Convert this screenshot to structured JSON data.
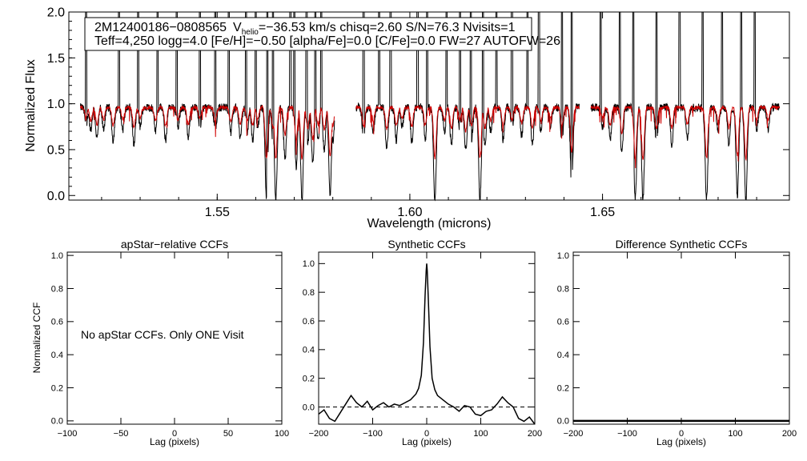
{
  "colors": {
    "observed": "#000000",
    "model": "#d00000",
    "frame": "#000000",
    "background": "#ffffff"
  },
  "spectrum_panel": {
    "info_line1": {
      "star_id": "2M12400186−0808565",
      "v_prefix": "V",
      "v_sub": "helio",
      "v_value": "=−36.53 km/s  chisq=2.60  S/N=76.3  Nvisits=1"
    },
    "info_line2": "Teff=4,250 logg=4.0 [Fe/H]=−0.50 [alpha/Fe]=0.0 [C/Fe]=0.0 FW=27 AUTOFW=26",
    "xlabel": "Wavelength (microns)",
    "ylabel": "Normalized Flux"
  },
  "ccf_panel1": {
    "title": "apStar−relative CCFs",
    "xlabel": "Lag (pixels)",
    "ylabel": "Normalized CCF",
    "message": "No apStar CCFs.  Only ONE Visit"
  },
  "ccf_panel2": {
    "title": "Synthetic CCFs",
    "xlabel": "Lag (pixels)"
  },
  "ccf_panel3": {
    "title": "Difference Synthetic CCFs",
    "xlabel": "Lag (pixels)"
  },
  "chart_data": [
    {
      "type": "line",
      "name": "spectrum",
      "xlabel": "Wavelength (microns)",
      "ylabel": "Normalized Flux",
      "xlim": [
        1.5115,
        1.6985
      ],
      "ylim": [
        -0.05,
        2.0
      ],
      "xticks": [
        1.55,
        1.6,
        1.65
      ],
      "xtick_labels": [
        "1.55",
        "1.60",
        "1.65"
      ],
      "yticks": [
        0.0,
        0.5,
        1.0,
        1.5,
        2.0
      ],
      "ytick_labels": [
        "0.0",
        "0.5",
        "1.0",
        "1.5",
        "2.0"
      ],
      "segments": [
        [
          1.5145,
          1.5805
        ],
        [
          1.586,
          1.644
        ],
        [
          1.647,
          1.696
        ]
      ],
      "series": [
        {
          "name": "observed spectrum",
          "color": "#000000",
          "continuum": 0.96,
          "absorption_lines": [
            [
              1.516,
              0.78
            ],
            [
              1.5172,
              0.7
            ],
            [
              1.5188,
              0.62
            ],
            [
              1.5205,
              0.72
            ],
            [
              1.523,
              0.6
            ],
            [
              1.5255,
              0.72
            ],
            [
              1.5284,
              0.55
            ],
            [
              1.53,
              0.75
            ],
            [
              1.534,
              0.7
            ],
            [
              1.5366,
              0.6
            ],
            [
              1.5398,
              0.72
            ],
            [
              1.5425,
              0.62
            ],
            [
              1.5455,
              0.74
            ],
            [
              1.5495,
              0.7
            ],
            [
              1.5535,
              0.68
            ],
            [
              1.556,
              0.62
            ],
            [
              1.5578,
              0.7
            ],
            [
              1.5592,
              0.6
            ],
            [
              1.5605,
              0.75
            ],
            [
              1.5628,
              -0.05
            ],
            [
              1.5645,
              0.55
            ],
            [
              1.5652,
              -0.05
            ],
            [
              1.5676,
              0.4
            ],
            [
              1.5705,
              0.3
            ],
            [
              1.572,
              -0.05
            ],
            [
              1.5735,
              0.55
            ],
            [
              1.5748,
              0.35
            ],
            [
              1.5762,
              0.62
            ],
            [
              1.5778,
              0.5
            ],
            [
              1.5793,
              0.0
            ],
            [
              1.58,
              0.6
            ],
            [
              1.588,
              0.6
            ],
            [
              1.5905,
              0.7
            ],
            [
              1.594,
              0.52
            ],
            [
              1.5965,
              0.6
            ],
            [
              1.598,
              0.75
            ],
            [
              1.6005,
              0.58
            ],
            [
              1.604,
              0.62
            ],
            [
              1.6065,
              -0.05
            ],
            [
              1.609,
              0.7
            ],
            [
              1.6108,
              0.55
            ],
            [
              1.613,
              0.72
            ],
            [
              1.6145,
              0.5
            ],
            [
              1.616,
              0.6
            ],
            [
              1.6182,
              -0.05
            ],
            [
              1.6195,
              0.55
            ],
            [
              1.621,
              0.7
            ],
            [
              1.6242,
              0.6
            ],
            [
              1.6265,
              0.72
            ],
            [
              1.629,
              0.65
            ],
            [
              1.6318,
              0.55
            ],
            [
              1.634,
              0.7
            ],
            [
              1.6365,
              0.75
            ],
            [
              1.6395,
              0.6
            ],
            [
              1.642,
              0.1
            ],
            [
              1.65,
              0.75
            ],
            [
              1.652,
              0.6
            ],
            [
              1.655,
              0.45
            ],
            [
              1.6585,
              -0.05
            ],
            [
              1.6605,
              -0.05
            ],
            [
              1.664,
              0.55
            ],
            [
              1.668,
              0.55
            ],
            [
              1.672,
              0.62
            ],
            [
              1.677,
              -0.05
            ],
            [
              1.68,
              0.7
            ],
            [
              1.6828,
              0.55
            ],
            [
              1.685,
              0.0
            ],
            [
              1.6872,
              -0.05
            ],
            [
              1.69,
              0.7
            ],
            [
              1.693,
              0.72
            ]
          ],
          "spikes": [
            1.516,
            1.5245,
            1.5295,
            1.5345,
            1.5395,
            1.5455,
            1.5495,
            1.553,
            1.5575,
            1.56,
            1.563,
            1.5645,
            1.569,
            1.57,
            1.5732,
            1.5755,
            1.577,
            1.588,
            1.592,
            1.595,
            1.602,
            1.6045,
            1.6095,
            1.613,
            1.6158,
            1.619,
            1.6225,
            1.6265,
            1.6305,
            1.6335,
            1.6395,
            1.642,
            1.6495,
            1.6545,
            1.658,
            1.664,
            1.67,
            1.676,
            1.681,
            1.686,
            1.6895
          ]
        },
        {
          "name": "model spectrum",
          "color": "#d00000",
          "continuum": 0.96,
          "absorption_scale": 0.55
        }
      ]
    },
    {
      "type": "line",
      "name": "apStar-relative CCFs",
      "title": "apStar−relative CCFs",
      "xlabel": "Lag (pixels)",
      "ylabel": "Normalized CCF",
      "xlim": [
        -100,
        100
      ],
      "ylim": [
        -0.02,
        1.02
      ],
      "xticks": [
        -100,
        -50,
        0,
        50,
        100
      ],
      "xtick_labels": [
        "−100",
        "−50",
        "0",
        "50",
        "100"
      ],
      "yticks": [
        0.0,
        0.2,
        0.4,
        0.6,
        0.8,
        1.0
      ],
      "ytick_labels": [
        "0.0",
        "0.2",
        "0.4",
        "0.6",
        "0.8",
        "1.0"
      ],
      "series": []
    },
    {
      "type": "line",
      "name": "Synthetic CCFs",
      "title": "Synthetic CCFs",
      "xlabel": "Lag (pixels)",
      "xlim": [
        -200,
        200
      ],
      "ylim": [
        -0.12,
        1.08
      ],
      "xticks": [
        -200,
        -100,
        0,
        100,
        200
      ],
      "xtick_labels": [
        "−200",
        "−100",
        "0",
        "100",
        "200"
      ],
      "yticks": [
        0.0,
        0.2,
        0.4,
        0.6,
        0.8,
        1.0
      ],
      "ytick_labels": [
        "0.0",
        "0.2",
        "0.4",
        "0.6",
        "0.8",
        "1.0"
      ],
      "hline": {
        "y": 0.0,
        "style": "dashed"
      },
      "series": [
        {
          "name": "synthetic CCF",
          "color": "#000000",
          "x": [
            -200,
            -190,
            -180,
            -170,
            -160,
            -150,
            -140,
            -130,
            -120,
            -110,
            -100,
            -90,
            -80,
            -70,
            -60,
            -50,
            -40,
            -30,
            -20,
            -15,
            -10,
            -6,
            -3,
            -1,
            0,
            1,
            3,
            6,
            10,
            15,
            20,
            30,
            40,
            50,
            60,
            70,
            80,
            90,
            100,
            110,
            120,
            130,
            140,
            150,
            160,
            170,
            180,
            190,
            200
          ],
          "y": [
            -0.05,
            -0.02,
            -0.08,
            -0.1,
            -0.04,
            0.02,
            0.08,
            0.03,
            0.0,
            0.04,
            -0.02,
            0.01,
            0.03,
            0.0,
            0.02,
            0.01,
            0.03,
            0.05,
            0.09,
            0.13,
            0.22,
            0.45,
            0.78,
            0.95,
            1.0,
            0.95,
            0.75,
            0.42,
            0.2,
            0.12,
            0.08,
            0.05,
            0.02,
            0.0,
            -0.03,
            0.01,
            0.0,
            -0.05,
            -0.06,
            -0.03,
            -0.02,
            0.02,
            0.07,
            0.03,
            0.0,
            -0.08,
            -0.1,
            -0.07,
            -0.12
          ]
        }
      ]
    },
    {
      "type": "line",
      "name": "Difference Synthetic CCFs",
      "title": "Difference Synthetic CCFs",
      "xlabel": "Lag (pixels)",
      "xlim": [
        -200,
        200
      ],
      "ylim": [
        -0.02,
        1.02
      ],
      "xticks": [
        -200,
        -100,
        0,
        100,
        200
      ],
      "xtick_labels": [
        "−200",
        "−100",
        "0",
        "100",
        "200"
      ],
      "yticks": [
        0.0,
        0.2,
        0.4,
        0.6,
        0.8,
        1.0
      ],
      "ytick_labels": [
        "0.0",
        "0.2",
        "0.4",
        "0.6",
        "0.8",
        "1.0"
      ],
      "series": [
        {
          "name": "difference CCF",
          "color": "#000000",
          "x": [
            -200,
            200
          ],
          "y": [
            0.0,
            0.0
          ]
        }
      ]
    }
  ]
}
